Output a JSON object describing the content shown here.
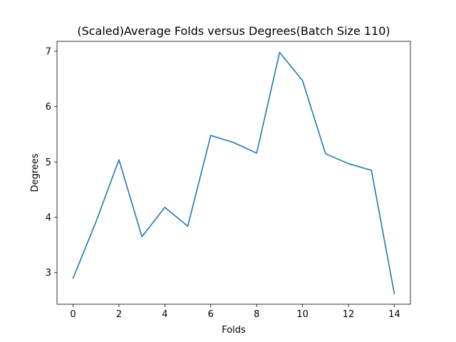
{
  "chart_data": {
    "type": "line",
    "title": "(Scaled)Average Folds versus Degrees(Batch Size 110)",
    "xlabel": "Folds",
    "ylabel": "Degrees",
    "xlim": [
      -0.7,
      14.7
    ],
    "ylim": [
      2.43,
      7.18
    ],
    "grid": false,
    "legend": "none",
    "x_ticks": [
      0,
      2,
      4,
      6,
      8,
      10,
      12,
      14
    ],
    "y_ticks": [
      3,
      4,
      5,
      6,
      7
    ],
    "series": [
      {
        "color": "#1f77b4",
        "x": [
          0,
          1,
          2,
          3,
          4,
          5,
          6,
          7,
          8,
          9,
          10,
          11,
          12,
          13,
          14
        ],
        "y": [
          2.9,
          3.92,
          5.04,
          3.65,
          4.18,
          3.84,
          5.48,
          5.35,
          5.16,
          6.98,
          6.47,
          5.15,
          4.97,
          4.85,
          2.62
        ]
      }
    ]
  }
}
